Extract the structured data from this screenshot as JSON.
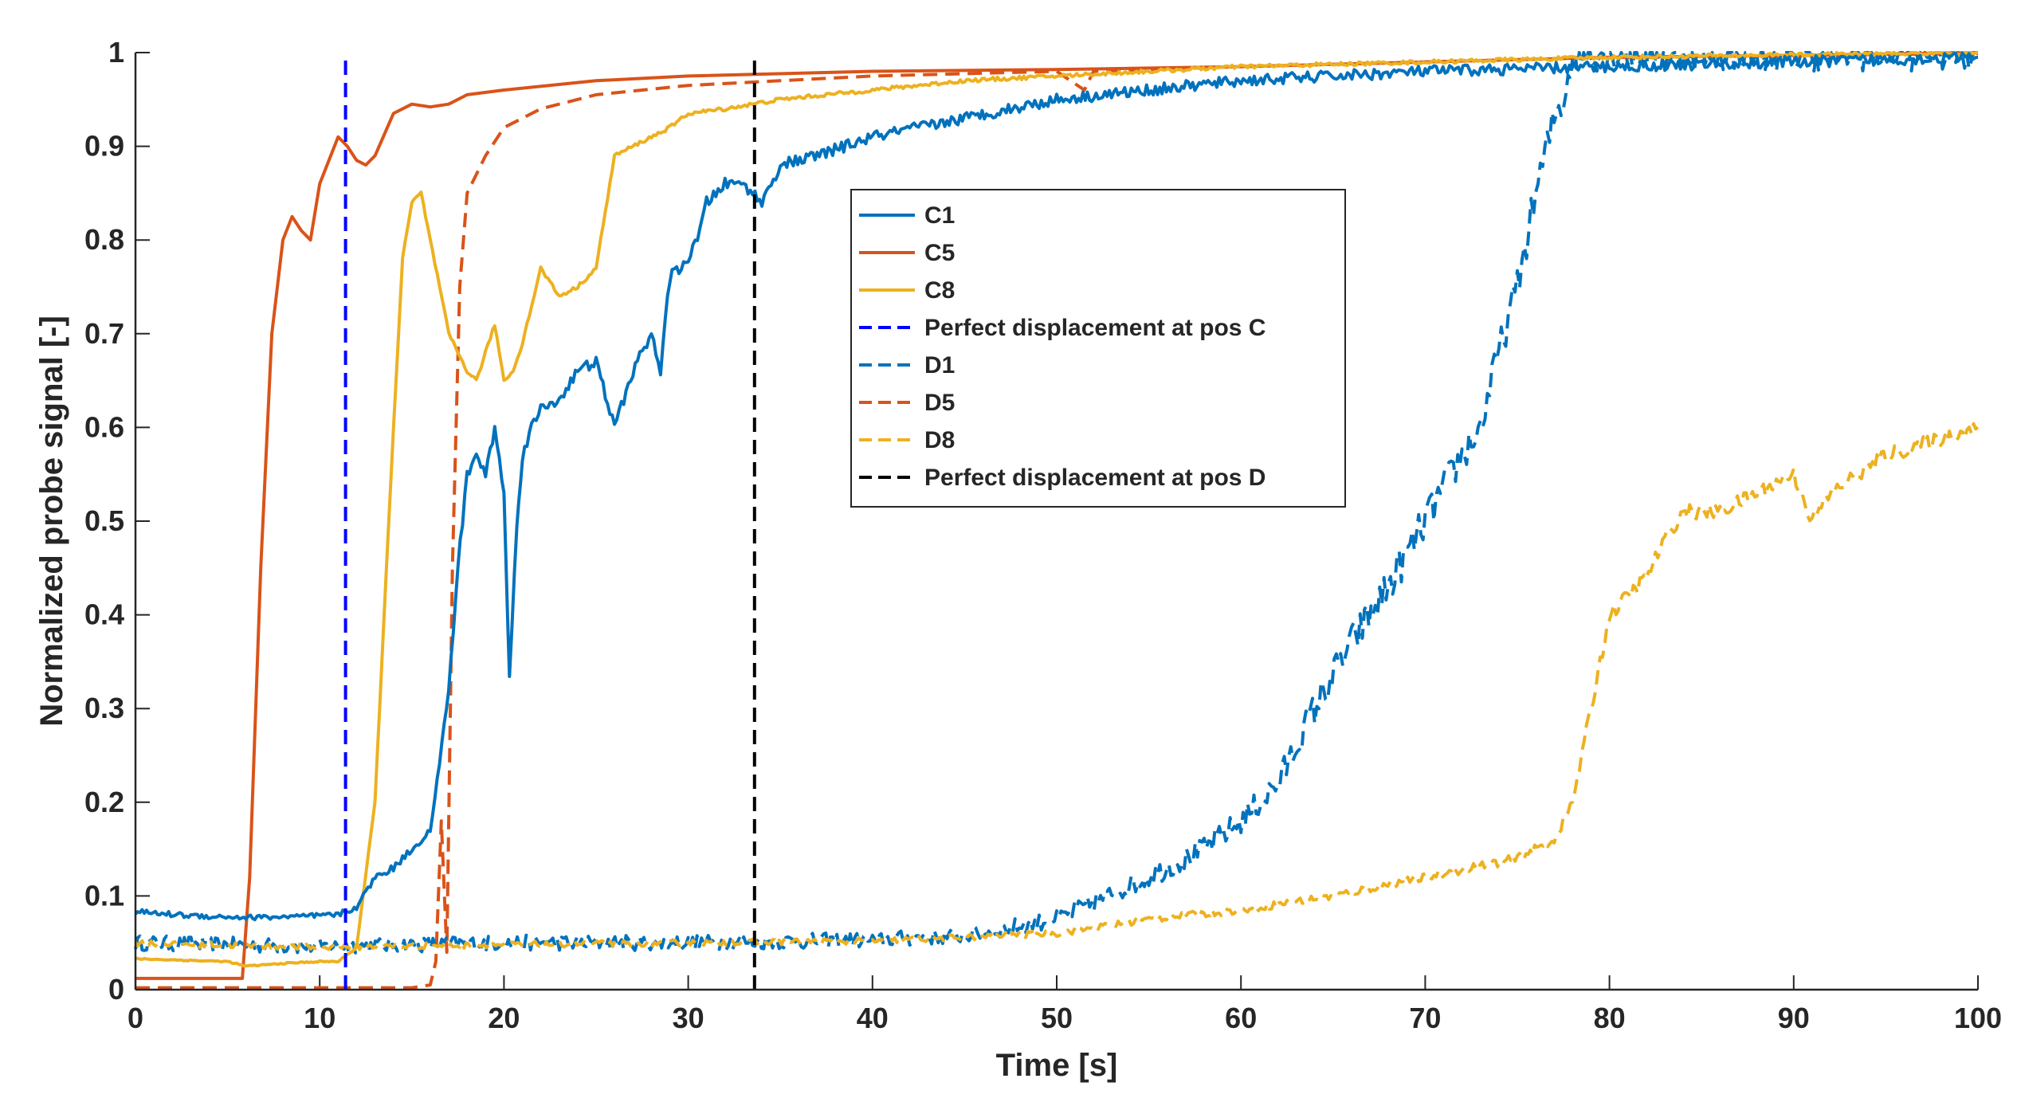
{
  "chart_data": {
    "type": "line",
    "xlabel": "Time [s]",
    "ylabel": "Normalized probe signal [-]",
    "xlim": [
      0,
      100
    ],
    "ylim": [
      0,
      1
    ],
    "xticks": [
      0,
      10,
      20,
      30,
      40,
      50,
      60,
      70,
      80,
      90,
      100
    ],
    "yticks": [
      0,
      0.1,
      0.2,
      0.3,
      0.4,
      0.5,
      0.6,
      0.7,
      0.8,
      0.9,
      1
    ],
    "ytick_labels": [
      "0",
      "0.1",
      "0.2",
      "0.3",
      "0.4",
      "0.5",
      "0.6",
      "0.7",
      "0.8",
      "0.9",
      "1"
    ],
    "legend_position": "upper-center",
    "series": [
      {
        "name": "C1",
        "color": "#0072BD",
        "style": "solid",
        "noise": 0.006,
        "points": [
          [
            0,
            0.083
          ],
          [
            3,
            0.079
          ],
          [
            6,
            0.077
          ],
          [
            9,
            0.078
          ],
          [
            11,
            0.08
          ],
          [
            12,
            0.088
          ],
          [
            13,
            0.12
          ],
          [
            14,
            0.13
          ],
          [
            15,
            0.15
          ],
          [
            16,
            0.17
          ],
          [
            16.5,
            0.24
          ],
          [
            17,
            0.32
          ],
          [
            17.5,
            0.45
          ],
          [
            18,
            0.55
          ],
          [
            18.5,
            0.57
          ],
          [
            19,
            0.55
          ],
          [
            19.5,
            0.6
          ],
          [
            20,
            0.53
          ],
          [
            20.3,
            0.33
          ],
          [
            20.7,
            0.5
          ],
          [
            21,
            0.57
          ],
          [
            21.5,
            0.6
          ],
          [
            22,
            0.62
          ],
          [
            23,
            0.63
          ],
          [
            24,
            0.66
          ],
          [
            25,
            0.67
          ],
          [
            26,
            0.6
          ],
          [
            27,
            0.66
          ],
          [
            28,
            0.7
          ],
          [
            28.5,
            0.66
          ],
          [
            29,
            0.76
          ],
          [
            30,
            0.78
          ],
          [
            30.5,
            0.8
          ],
          [
            31,
            0.84
          ],
          [
            32,
            0.86
          ],
          [
            33,
            0.86
          ],
          [
            33.5,
            0.85
          ],
          [
            34,
            0.84
          ],
          [
            35,
            0.88
          ],
          [
            37,
            0.89
          ],
          [
            40,
            0.91
          ],
          [
            45,
            0.93
          ],
          [
            50,
            0.95
          ],
          [
            55,
            0.96
          ],
          [
            60,
            0.97
          ],
          [
            70,
            0.98
          ],
          [
            80,
            0.985
          ],
          [
            90,
            0.99
          ],
          [
            100,
            0.995
          ]
        ]
      },
      {
        "name": "C5",
        "color": "#D95319",
        "style": "solid",
        "noise": 0,
        "points": [
          [
            0,
            0.012
          ],
          [
            5.8,
            0.012
          ],
          [
            6.2,
            0.12
          ],
          [
            6.8,
            0.45
          ],
          [
            7.4,
            0.7
          ],
          [
            8,
            0.8
          ],
          [
            8.5,
            0.825
          ],
          [
            9,
            0.81
          ],
          [
            9.5,
            0.8
          ],
          [
            10,
            0.86
          ],
          [
            11,
            0.91
          ],
          [
            11.5,
            0.9
          ],
          [
            12,
            0.885
          ],
          [
            12.5,
            0.88
          ],
          [
            13,
            0.89
          ],
          [
            14,
            0.935
          ],
          [
            15,
            0.945
          ],
          [
            16,
            0.942
          ],
          [
            17,
            0.945
          ],
          [
            18,
            0.955
          ],
          [
            20,
            0.96
          ],
          [
            25,
            0.97
          ],
          [
            30,
            0.975
          ],
          [
            40,
            0.98
          ],
          [
            50,
            0.982
          ],
          [
            60,
            0.985
          ],
          [
            70,
            0.99
          ],
          [
            80,
            0.995
          ],
          [
            90,
            0.997
          ],
          [
            100,
            1.0
          ]
        ]
      },
      {
        "name": "C8",
        "color": "#EDB120",
        "style": "solid",
        "noise": 0.002,
        "points": [
          [
            0,
            0.033
          ],
          [
            5,
            0.03
          ],
          [
            6,
            0.025
          ],
          [
            8,
            0.028
          ],
          [
            10,
            0.03
          ],
          [
            11,
            0.03
          ],
          [
            12,
            0.045
          ],
          [
            13,
            0.2
          ],
          [
            14,
            0.6
          ],
          [
            14.5,
            0.78
          ],
          [
            15,
            0.84
          ],
          [
            15.5,
            0.85
          ],
          [
            16,
            0.8
          ],
          [
            16.5,
            0.75
          ],
          [
            17,
            0.7
          ],
          [
            17.5,
            0.68
          ],
          [
            18,
            0.66
          ],
          [
            18.5,
            0.65
          ],
          [
            19,
            0.68
          ],
          [
            19.5,
            0.71
          ],
          [
            20,
            0.65
          ],
          [
            20.5,
            0.66
          ],
          [
            21,
            0.69
          ],
          [
            22,
            0.77
          ],
          [
            23,
            0.74
          ],
          [
            24,
            0.75
          ],
          [
            25,
            0.77
          ],
          [
            26,
            0.89
          ],
          [
            27,
            0.9
          ],
          [
            28,
            0.91
          ],
          [
            29,
            0.92
          ],
          [
            30,
            0.935
          ],
          [
            32,
            0.94
          ],
          [
            35,
            0.95
          ],
          [
            40,
            0.96
          ],
          [
            45,
            0.97
          ],
          [
            50,
            0.975
          ],
          [
            60,
            0.985
          ],
          [
            70,
            0.99
          ],
          [
            80,
            0.995
          ],
          [
            100,
            1.0
          ]
        ]
      },
      {
        "name": "Perfect displacement at pos C",
        "color": "#0000FF",
        "style": "dashed",
        "noise": 0,
        "points": [
          [
            11.4,
            0
          ],
          [
            11.4,
            1
          ]
        ]
      },
      {
        "name": "D1",
        "color": "#0072BD",
        "style": "dashed",
        "noise": 0.02,
        "points": [
          [
            0,
            0.05
          ],
          [
            10,
            0.046
          ],
          [
            20,
            0.05
          ],
          [
            30,
            0.05
          ],
          [
            40,
            0.053
          ],
          [
            45,
            0.058
          ],
          [
            50,
            0.075
          ],
          [
            55,
            0.12
          ],
          [
            58,
            0.15
          ],
          [
            60,
            0.18
          ],
          [
            62,
            0.22
          ],
          [
            64,
            0.3
          ],
          [
            66,
            0.37
          ],
          [
            68,
            0.43
          ],
          [
            70,
            0.5
          ],
          [
            72,
            0.57
          ],
          [
            73,
            0.6
          ],
          [
            74,
            0.68
          ],
          [
            75,
            0.75
          ],
          [
            76,
            0.85
          ],
          [
            77,
            0.93
          ],
          [
            77.5,
            0.95
          ],
          [
            78,
            1.0
          ],
          [
            100,
            1.0
          ]
        ]
      },
      {
        "name": "D5",
        "color": "#D95319",
        "style": "dashed",
        "noise": 0,
        "points": [
          [
            0,
            0.002
          ],
          [
            15,
            0.002
          ],
          [
            16,
            0.005
          ],
          [
            16.3,
            0.03
          ],
          [
            16.6,
            0.18
          ],
          [
            16.9,
            0.04
          ],
          [
            17.2,
            0.45
          ],
          [
            17.6,
            0.75
          ],
          [
            18,
            0.85
          ],
          [
            19,
            0.89
          ],
          [
            20,
            0.92
          ],
          [
            22,
            0.94
          ],
          [
            25,
            0.955
          ],
          [
            30,
            0.965
          ],
          [
            35,
            0.97
          ],
          [
            40,
            0.975
          ],
          [
            50,
            0.98
          ],
          [
            51.5,
            0.96
          ],
          [
            52,
            0.98
          ],
          [
            60,
            0.985
          ],
          [
            70,
            0.99
          ],
          [
            80,
            0.995
          ],
          [
            100,
            0.999
          ]
        ]
      },
      {
        "name": "D8",
        "color": "#EDB120",
        "style": "dashed",
        "noise": 0.008,
        "points": [
          [
            0,
            0.05
          ],
          [
            10,
            0.045
          ],
          [
            20,
            0.048
          ],
          [
            30,
            0.05
          ],
          [
            40,
            0.052
          ],
          [
            50,
            0.06
          ],
          [
            55,
            0.075
          ],
          [
            60,
            0.085
          ],
          [
            65,
            0.1
          ],
          [
            70,
            0.12
          ],
          [
            75,
            0.14
          ],
          [
            77,
            0.16
          ],
          [
            78,
            0.2
          ],
          [
            79,
            0.3
          ],
          [
            80,
            0.4
          ],
          [
            82,
            0.44
          ],
          [
            83,
            0.48
          ],
          [
            84,
            0.51
          ],
          [
            86,
            0.51
          ],
          [
            88,
            0.53
          ],
          [
            90,
            0.55
          ],
          [
            91,
            0.5
          ],
          [
            92,
            0.53
          ],
          [
            95,
            0.57
          ],
          [
            100,
            0.6
          ]
        ]
      },
      {
        "name": "Perfect displacement at pos D",
        "color": "#000000",
        "style": "dashed",
        "noise": 0,
        "points": [
          [
            33.6,
            0
          ],
          [
            33.6,
            1
          ]
        ]
      }
    ]
  }
}
